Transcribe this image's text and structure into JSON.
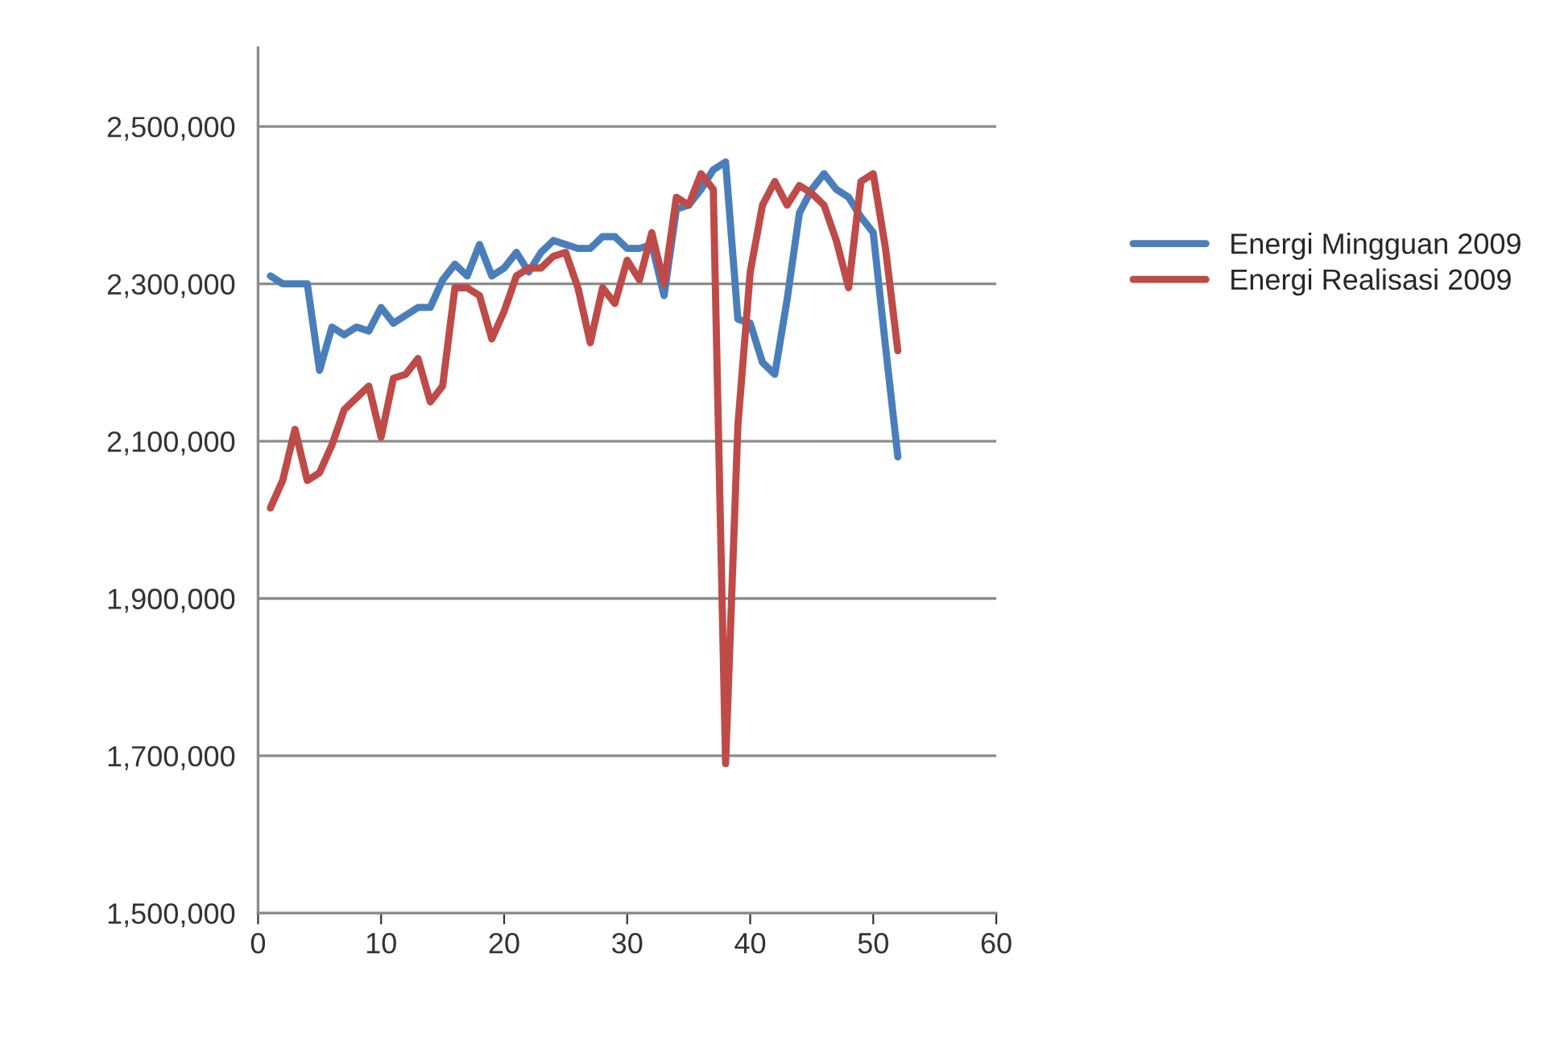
{
  "chart_data": {
    "type": "line",
    "x": [
      1,
      2,
      3,
      4,
      5,
      6,
      7,
      8,
      9,
      10,
      11,
      12,
      13,
      14,
      15,
      16,
      17,
      18,
      19,
      20,
      21,
      22,
      23,
      24,
      25,
      26,
      27,
      28,
      29,
      30,
      31,
      32,
      33,
      34,
      35,
      36,
      37,
      38,
      39,
      40,
      41,
      42,
      43,
      44,
      45,
      46,
      47,
      48,
      49,
      50,
      51,
      52
    ],
    "series": [
      {
        "name": "Energi Mingguan 2009",
        "color": "#4a7ebb",
        "values": [
          2310000,
          2300000,
          2300000,
          2300000,
          2190000,
          2245000,
          2235000,
          2245000,
          2240000,
          2270000,
          2250000,
          2260000,
          2270000,
          2270000,
          2305000,
          2325000,
          2310000,
          2350000,
          2310000,
          2320000,
          2340000,
          2315000,
          2340000,
          2355000,
          2350000,
          2345000,
          2345000,
          2360000,
          2360000,
          2345000,
          2345000,
          2350000,
          2285000,
          2395000,
          2400000,
          2420000,
          2445000,
          2455000,
          2255000,
          2250000,
          2200000,
          2185000,
          2280000,
          2390000,
          2420000,
          2440000,
          2420000,
          2410000,
          2385000,
          2365000,
          2220000,
          2080000
        ]
      },
      {
        "name": "Energi Realisasi 2009",
        "color": "#be4b48",
        "values": [
          2015000,
          2050000,
          2115000,
          2050000,
          2060000,
          2095000,
          2140000,
          2155000,
          2170000,
          2105000,
          2180000,
          2185000,
          2205000,
          2150000,
          2170000,
          2295000,
          2295000,
          2285000,
          2230000,
          2265000,
          2310000,
          2320000,
          2320000,
          2335000,
          2340000,
          2295000,
          2225000,
          2295000,
          2275000,
          2330000,
          2305000,
          2365000,
          2300000,
          2410000,
          2400000,
          2440000,
          2420000,
          1690000,
          2120000,
          2315000,
          2400000,
          2430000,
          2400000,
          2425000,
          2415000,
          2400000,
          2355000,
          2295000,
          2430000,
          2440000,
          2345000,
          2215000
        ]
      }
    ],
    "xlim": [
      0,
      60
    ],
    "xticks": [
      0,
      10,
      20,
      30,
      40,
      50,
      60
    ],
    "ylim": [
      1500000,
      2600000
    ],
    "yticks": [
      {
        "value": 1500000,
        "label": "1,500,000"
      },
      {
        "value": 1700000,
        "label": "1,700,000"
      },
      {
        "value": 1900000,
        "label": "1,900,000"
      },
      {
        "value": 2100000,
        "label": "2,100,000"
      },
      {
        "value": 2300000,
        "label": "2,300,000"
      },
      {
        "value": 2500000,
        "label": "2,500,000"
      }
    ],
    "grid": "y",
    "legend": "right",
    "marker": "none",
    "line_style": "solid"
  }
}
